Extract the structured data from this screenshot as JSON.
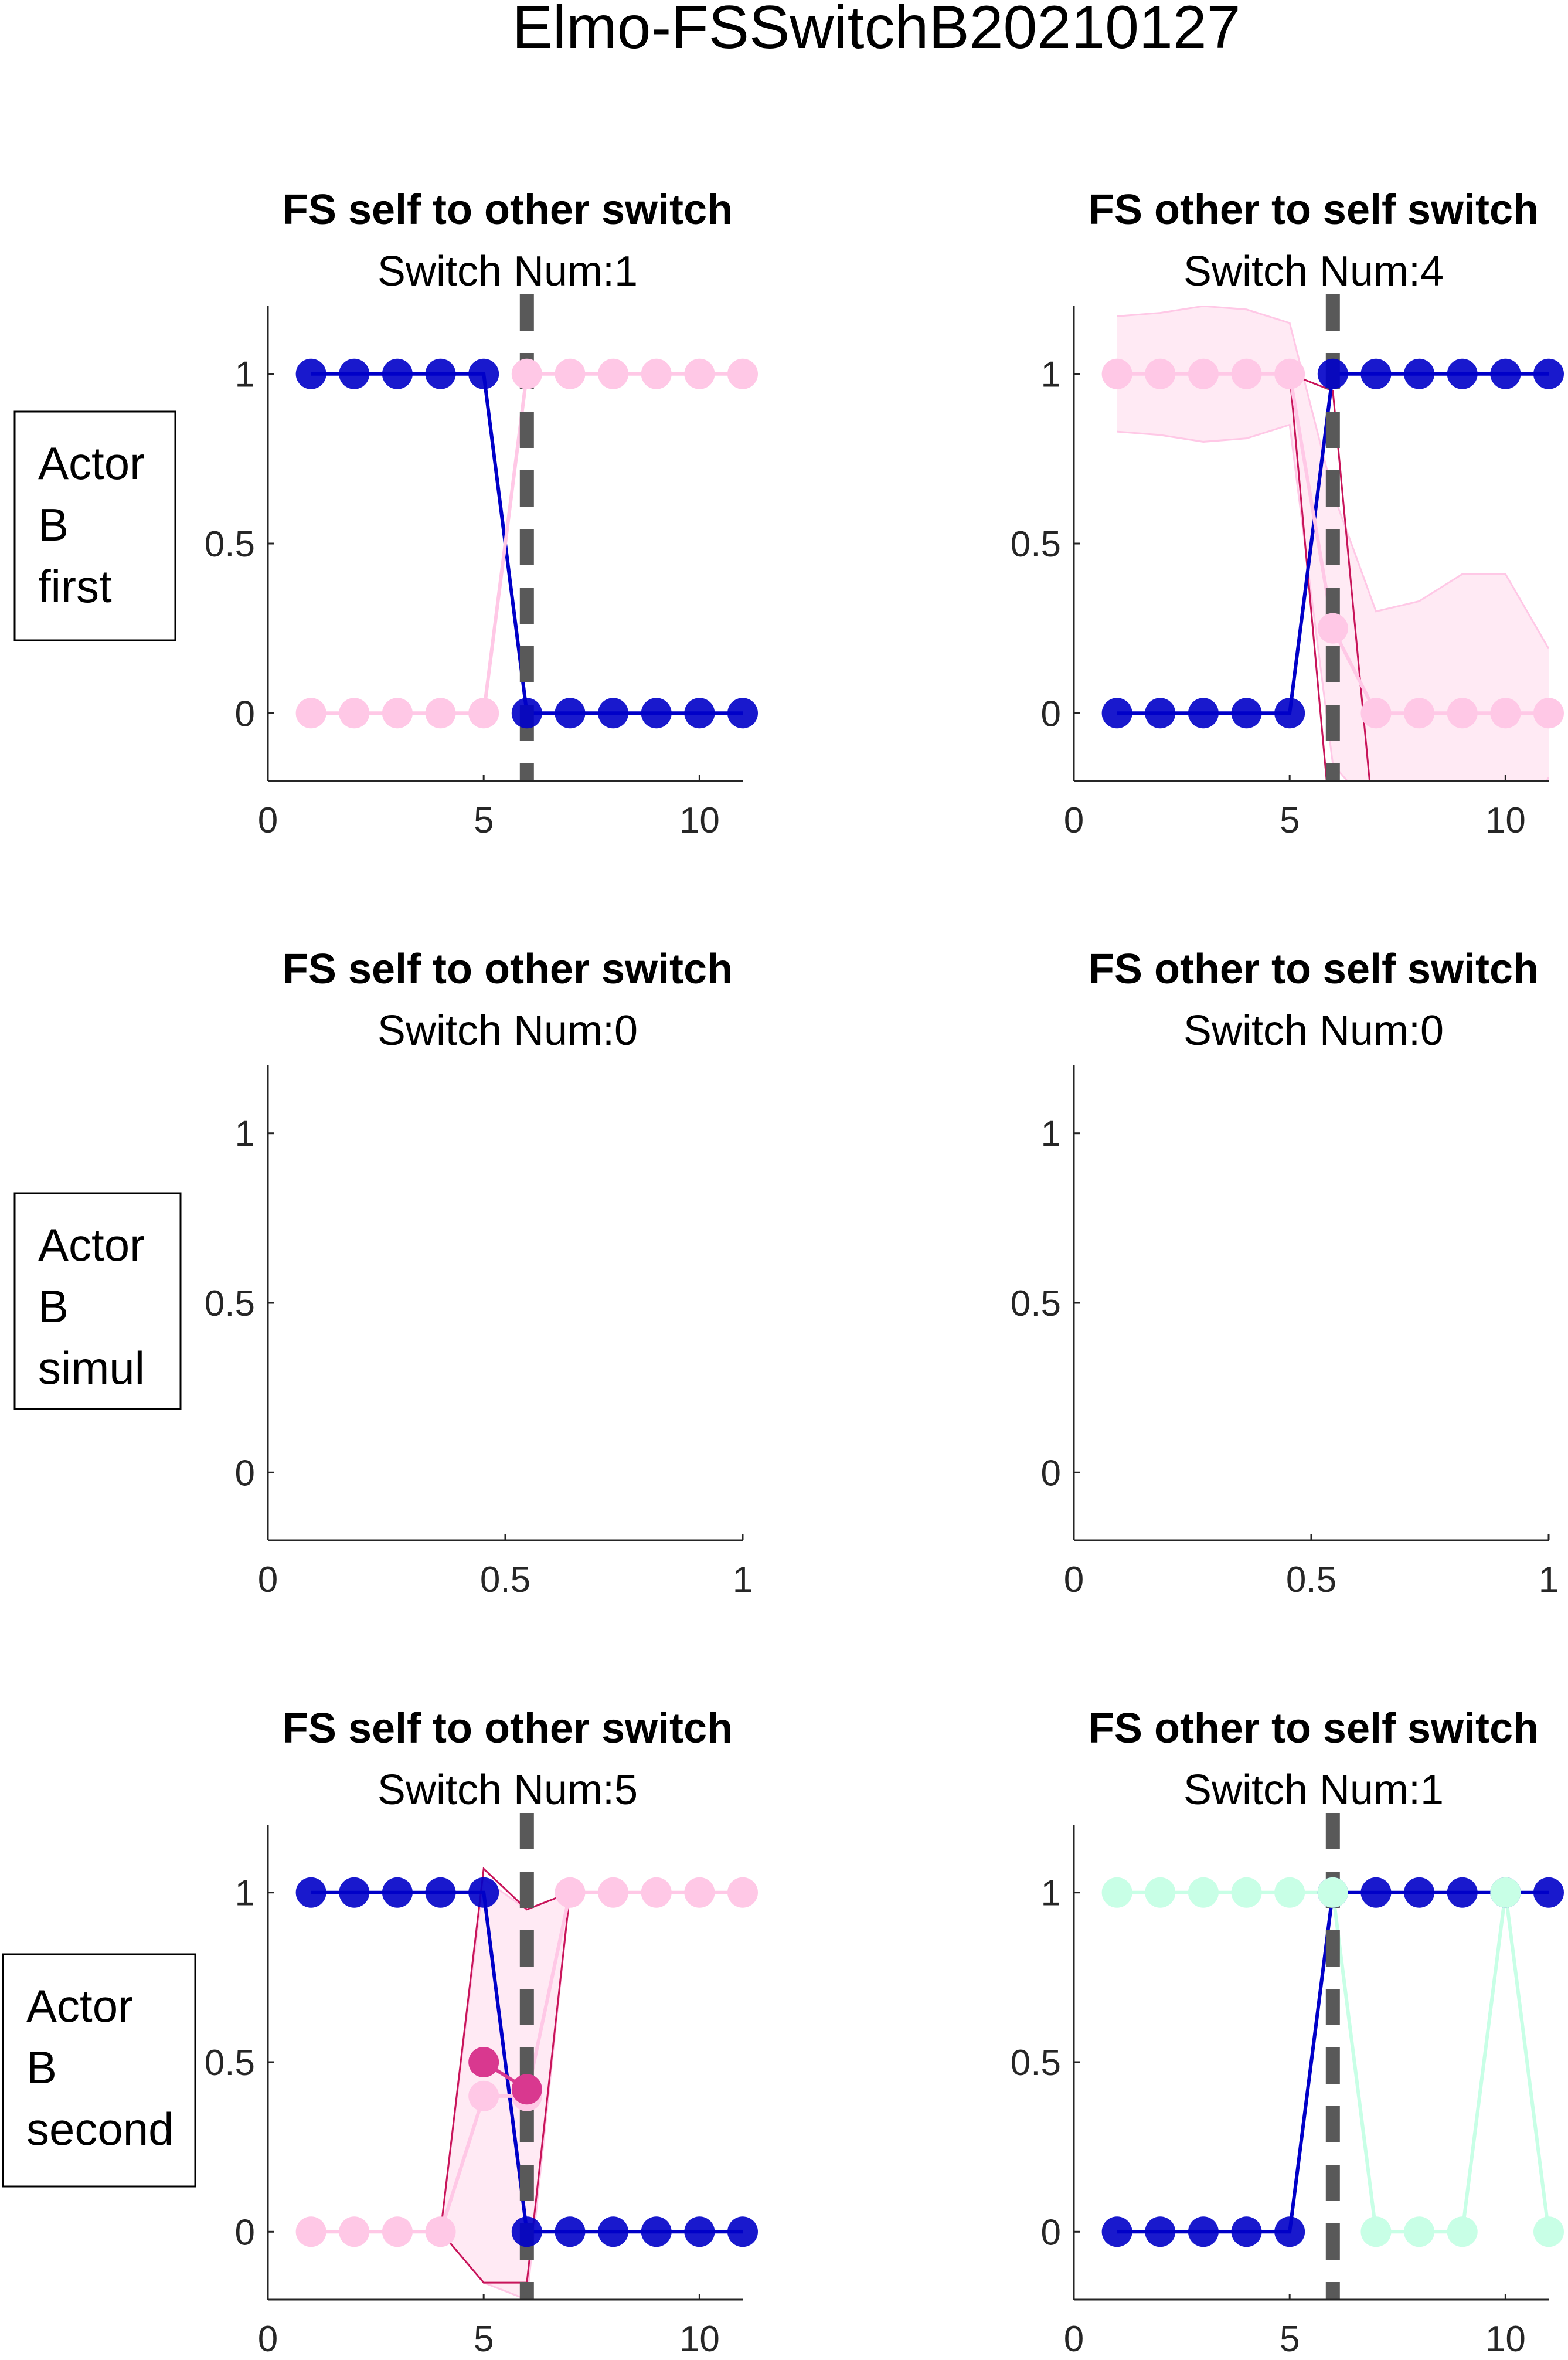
{
  "figure": {
    "title": "Elmo-FSSwitchB20210127",
    "row_labels": [
      [
        "Actor",
        "B",
        "first"
      ],
      [
        "Actor",
        "B",
        "simul"
      ],
      [
        "Actor",
        "B",
        "second"
      ]
    ]
  },
  "colors": {
    "self": "#0000c8",
    "other": "#ffc8e6",
    "other_alt": "#c8ffe6",
    "mean_other": "#d9388f",
    "bound_line": "#c8145a",
    "band_fill": "#ffe6f2",
    "switch_line": "#595959"
  },
  "chart_data": [
    {
      "type": "line",
      "title": "FS self to other switch",
      "subtitle": "Switch Num:1",
      "xlim": [
        0,
        11
      ],
      "ylim": [
        -0.2,
        1.2
      ],
      "xticks": [
        0,
        5,
        10
      ],
      "yticks": [
        0,
        0.5,
        1
      ],
      "switch_x": 6,
      "series": [
        {
          "color": "self",
          "markers": true,
          "x": [
            1,
            2,
            3,
            4,
            5,
            6,
            7,
            8,
            9,
            10,
            11
          ],
          "values": [
            1,
            1,
            1,
            1,
            1,
            0,
            0,
            0,
            0,
            0,
            0
          ]
        },
        {
          "color": "other",
          "markers": true,
          "x": [
            1,
            2,
            3,
            4,
            5,
            6,
            7,
            8,
            9,
            10,
            11
          ],
          "values": [
            0,
            0,
            0,
            0,
            0,
            1,
            1,
            1,
            1,
            1,
            1
          ]
        }
      ]
    },
    {
      "type": "line",
      "title": "FS other to self switch",
      "subtitle": "Switch Num:4",
      "xlim": [
        0,
        11
      ],
      "ylim": [
        -0.2,
        1.2
      ],
      "xticks": [
        0,
        5,
        10
      ],
      "yticks": [
        0,
        0.5,
        1
      ],
      "switch_x": 6,
      "bands": [
        {
          "x": [
            1,
            2,
            3,
            4,
            5,
            6,
            7,
            8,
            9,
            10,
            11
          ],
          "upper": [
            1.17,
            1.18,
            1.2,
            1.19,
            1.15,
            0.65,
            0.3,
            0.33,
            0.41,
            0.41,
            0.19
          ],
          "lower": [
            0.83,
            0.82,
            0.8,
            0.81,
            0.85,
            -0.15,
            -0.3,
            -0.33,
            -0.41,
            -0.41,
            -0.19
          ]
        }
      ],
      "bounds": [
        {
          "x": [
            5,
            6,
            7
          ],
          "values": [
            1,
            -0.4,
            -0.4
          ]
        },
        {
          "x": [
            5,
            6,
            7
          ],
          "values": [
            1,
            0.95,
            -0.4
          ]
        }
      ],
      "series": [
        {
          "color": "self",
          "markers": true,
          "x": [
            1,
            2,
            3,
            4,
            5,
            6,
            7,
            8,
            9,
            10,
            11
          ],
          "values": [
            0,
            0,
            0,
            0,
            0,
            1,
            1,
            1,
            1,
            1,
            1
          ]
        },
        {
          "color": "other",
          "markers": true,
          "x": [
            1,
            2,
            3,
            4,
            5,
            6,
            7,
            8,
            9,
            10,
            11
          ],
          "values": [
            1,
            1,
            1,
            1,
            1,
            0.25,
            0,
            0,
            0,
            0,
            0
          ]
        }
      ]
    },
    {
      "type": "line",
      "title": "FS self to other switch",
      "subtitle": "Switch Num:0",
      "xlim": [
        0,
        1
      ],
      "ylim": [
        -0.2,
        1.2
      ],
      "xticks": [
        0,
        0.5,
        1
      ],
      "yticks": [
        0,
        0.5,
        1
      ],
      "series": []
    },
    {
      "type": "line",
      "title": "FS other to self switch",
      "subtitle": "Switch Num:0",
      "xlim": [
        0,
        1
      ],
      "ylim": [
        -0.2,
        1.2
      ],
      "xticks": [
        0,
        0.5,
        1
      ],
      "yticks": [
        0,
        0.5,
        1
      ],
      "series": []
    },
    {
      "type": "line",
      "title": "FS self to other switch",
      "subtitle": "Switch Num:5",
      "xlim": [
        0,
        11
      ],
      "ylim": [
        -0.2,
        1.2
      ],
      "xticks": [
        0,
        5,
        10
      ],
      "yticks": [
        0,
        0.5,
        1
      ],
      "switch_x": 6,
      "bands": [
        {
          "x": [
            4,
            5,
            6,
            7
          ],
          "upper": [
            0,
            1.04,
            0.95,
            1
          ],
          "lower": [
            0,
            -0.15,
            -0.2,
            1
          ]
        }
      ],
      "bounds": [
        {
          "x": [
            4,
            5,
            6,
            7
          ],
          "values": [
            0,
            1.07,
            0.95,
            1
          ]
        },
        {
          "x": [
            4,
            5,
            6,
            7
          ],
          "values": [
            0,
            -0.15,
            -0.15,
            1
          ]
        }
      ],
      "series": [
        {
          "color": "self",
          "markers": true,
          "x": [
            1,
            2,
            3,
            4,
            5,
            6,
            7,
            8,
            9,
            10,
            11
          ],
          "values": [
            1,
            1,
            1,
            1,
            1,
            0,
            0,
            0,
            0,
            0,
            0
          ]
        },
        {
          "color": "other",
          "markers": true,
          "x": [
            1,
            2,
            3,
            4,
            5,
            6,
            7,
            8,
            9,
            10,
            11
          ],
          "values": [
            0,
            0,
            0,
            0,
            0.4,
            0.4,
            1,
            1,
            1,
            1,
            1
          ]
        },
        {
          "color": "mean_other",
          "markers": true,
          "x": [
            5,
            6
          ],
          "values": [
            0.5,
            0.42
          ]
        }
      ]
    },
    {
      "type": "line",
      "title": "FS other to self switch",
      "subtitle": "Switch Num:1",
      "xlim": [
        0,
        11
      ],
      "ylim": [
        -0.2,
        1.2
      ],
      "xticks": [
        0,
        5,
        10
      ],
      "yticks": [
        0,
        0.5,
        1
      ],
      "switch_x": 6,
      "series": [
        {
          "color": "self",
          "markers": true,
          "x": [
            1,
            2,
            3,
            4,
            5,
            6,
            7,
            8,
            9,
            10,
            11
          ],
          "values": [
            0,
            0,
            0,
            0,
            0,
            1,
            1,
            1,
            1,
            1,
            1
          ]
        },
        {
          "color": "other_alt",
          "markers": true,
          "x": [
            1,
            2,
            3,
            4,
            5,
            6,
            7,
            8,
            9,
            10,
            11
          ],
          "values": [
            1,
            1,
            1,
            1,
            1,
            1,
            0,
            0,
            0,
            1,
            0
          ]
        }
      ]
    }
  ]
}
